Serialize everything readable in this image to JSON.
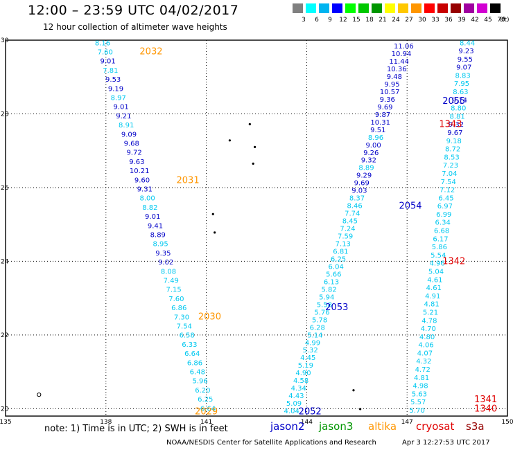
{
  "header": {
    "title": "12:00 – 23:59 UTC 04/02/2017",
    "subtitle": "12 hour collection of altimeter wave heights"
  },
  "color_scale": {
    "unit_label": "(ft)",
    "bins": [
      {
        "label": "3",
        "color": "#808080"
      },
      {
        "label": "6",
        "color": "#00ffff"
      },
      {
        "label": "9",
        "color": "#00b4f0"
      },
      {
        "label": "12",
        "color": "#0000ff"
      },
      {
        "label": "15",
        "color": "#00ff00"
      },
      {
        "label": "18",
        "color": "#00c800"
      },
      {
        "label": "21",
        "color": "#009600"
      },
      {
        "label": "24",
        "color": "#ffff00"
      },
      {
        "label": "27",
        "color": "#ffc800"
      },
      {
        "label": "30",
        "color": "#ff9600"
      },
      {
        "label": "33",
        "color": "#ff0000"
      },
      {
        "label": "36",
        "color": "#c80000"
      },
      {
        "label": "39",
        "color": "#960000"
      },
      {
        "label": "42",
        "color": "#a000a0"
      },
      {
        "label": "45",
        "color": "#d200d2"
      },
      {
        "label": "70",
        "color": "#000000"
      }
    ]
  },
  "axes": {
    "x": {
      "min": 135,
      "max": 150,
      "ticks": [
        "135",
        "138",
        "141",
        "144",
        "147",
        "150"
      ]
    },
    "y": {
      "min": 19.8,
      "max": 30,
      "ticks": [
        "20",
        "22",
        "24",
        "26",
        "28",
        "30"
      ]
    },
    "grid": "dotted"
  },
  "colors": {
    "cyan_value": "#00c8f0",
    "blue_value": "#0000c8",
    "jason2": "#0000c8",
    "jason3": "#009600",
    "altika": "#ff9600",
    "cryosat": "#e00000",
    "s3a": "#960000"
  },
  "passes": [
    {
      "id": "pass-2032",
      "label": "2032",
      "color": "#ff9600",
      "lon": 139.35,
      "lat": 29.69
    },
    {
      "id": "pass-2031",
      "label": "2031",
      "color": "#ff9600",
      "lon": 140.45,
      "lat": 26.2
    },
    {
      "id": "pass-2030",
      "label": "2030",
      "color": "#ff9600",
      "lon": 141.1,
      "lat": 22.5
    },
    {
      "id": "pass-2029",
      "label": "2029",
      "color": "#ff9600",
      "lon": 141.0,
      "lat": 19.92
    },
    {
      "id": "pass-2052",
      "label": "2052",
      "color": "#0000c8",
      "lon": 144.1,
      "lat": 19.92
    },
    {
      "id": "pass-2053",
      "label": "2053",
      "color": "#0000c8",
      "lon": 144.9,
      "lat": 22.75
    },
    {
      "id": "pass-2054",
      "label": "2054",
      "color": "#0000c8",
      "lon": 147.1,
      "lat": 25.5
    },
    {
      "id": "pass-2055",
      "label": "2055",
      "color": "#0000c8",
      "lon": 148.4,
      "lat": 28.35
    },
    {
      "id": "pass-1343",
      "label": "1343",
      "color": "#e00000",
      "lon": 148.3,
      "lat": 27.72
    },
    {
      "id": "pass-1342",
      "label": "1342",
      "color": "#e00000",
      "lon": 148.4,
      "lat": 24.0
    },
    {
      "id": "pass-1341",
      "label": "1341",
      "color": "#e00000",
      "lon": 149.35,
      "lat": 20.25
    },
    {
      "id": "pass-1340",
      "label": "1340",
      "color": "#e00000",
      "lon": 149.35,
      "lat": 20.0
    }
  ],
  "tracks": [
    {
      "id": "altika-west",
      "lon0": 137.9,
      "lat0": 29.92,
      "lon1": 141.05,
      "lat1": 20.0,
      "values": [
        "8.16",
        "7.60",
        "9.01",
        "7.81",
        "9.53",
        "9.19",
        "8.97",
        "9.01",
        "9.21",
        "8.91",
        "9.09",
        "9.68",
        "9.72",
        "9.63",
        "10.21",
        "9.60",
        "9.31",
        "8.00",
        "8.82",
        "9.01",
        "9.41",
        "8.89",
        "8.95",
        "9.35",
        "9.02",
        "8.08",
        "7.49",
        "7.15",
        "7.60",
        "6.86",
        "7.30",
        "7.54",
        "6.58",
        "6.33",
        "6.64",
        "6.86",
        "6.48",
        "5.96",
        "6.20",
        "6.25",
        "6.64"
      ],
      "value_colors": [
        "c",
        "c",
        "b",
        "c",
        "b",
        "b",
        "c",
        "b",
        "b",
        "c",
        "b",
        "b",
        "b",
        "b",
        "b",
        "b",
        "b",
        "c",
        "c",
        "b",
        "b",
        "b",
        "c",
        "b",
        "b",
        "c",
        "c",
        "c",
        "c",
        "c",
        "c",
        "c",
        "c",
        "c",
        "c",
        "c",
        "c",
        "c",
        "c",
        "c",
        "c"
      ]
    },
    {
      "id": "jason-mid",
      "lon0": 143.55,
      "lat0": 19.93,
      "lon1": 146.9,
      "lat1": 29.83,
      "values": [
        "4.04",
        "5.09",
        "4.43",
        "4.34",
        "4.58",
        "4.90",
        "5.19",
        "4.45",
        "5.32",
        "4.99",
        "5.14",
        "6.28",
        "5.78",
        "5.76",
        "5.58",
        "5.94",
        "5.82",
        "6.13",
        "5.66",
        "6.04",
        "6.25",
        "6.81",
        "7.13",
        "7.59",
        "7.24",
        "8.45",
        "7.74",
        "8.46",
        "8.37",
        "9.03",
        "9.69",
        "9.29",
        "8.89",
        "9.32",
        "9.26",
        "9.00",
        "8.96",
        "9.51",
        "10.31",
        "9.87",
        "9.69",
        "9.36",
        "10.57",
        "9.95",
        "9.48",
        "10.36",
        "11.44",
        "10.94",
        "11.06"
      ],
      "value_colors": [
        "c",
        "c",
        "c",
        "c",
        "c",
        "c",
        "c",
        "c",
        "c",
        "c",
        "c",
        "c",
        "c",
        "c",
        "c",
        "c",
        "c",
        "c",
        "c",
        "c",
        "c",
        "c",
        "c",
        "c",
        "c",
        "c",
        "c",
        "c",
        "c",
        "b",
        "b",
        "b",
        "c",
        "b",
        "b",
        "b",
        "c",
        "b",
        "b",
        "b",
        "b",
        "b",
        "b",
        "b",
        "b",
        "b",
        "b",
        "b",
        "b"
      ]
    },
    {
      "id": "jason-east",
      "lon0": 148.8,
      "lat0": 29.92,
      "lon1": 147.3,
      "lat1": 19.95,
      "values": [
        "8.44",
        "9.23",
        "9.55",
        "9.07",
        "8.83",
        "7.95",
        "8.63",
        "9.14",
        "8.80",
        "8.81",
        "9.32",
        "9.67",
        "9.18",
        "8.72",
        "8.53",
        "7.23",
        "7.04",
        "7.54",
        "7.12",
        "6.45",
        "6.97",
        "6.99",
        "6.34",
        "6.68",
        "6.17",
        "5.86",
        "5.54",
        "4.96",
        "5.04",
        "4.61",
        "4.61",
        "4.91",
        "4.81",
        "5.21",
        "4.78",
        "4.70",
        "4.80",
        "4.06",
        "4.07",
        "4.32",
        "4.72",
        "4.81",
        "4.98",
        "5.63",
        "5.57",
        "5.70"
      ],
      "value_colors": [
        "c",
        "b",
        "b",
        "b",
        "c",
        "c",
        "c",
        "b",
        "c",
        "c",
        "b",
        "b",
        "c",
        "c",
        "c",
        "c",
        "c",
        "c",
        "c",
        "c",
        "c",
        "c",
        "c",
        "c",
        "c",
        "c",
        "c",
        "c",
        "c",
        "c",
        "c",
        "c",
        "c",
        "c",
        "c",
        "c",
        "c",
        "c",
        "c",
        "c",
        "c",
        "c",
        "c",
        "c",
        "c",
        "c"
      ]
    }
  ],
  "islands": [
    {
      "id": "island-1",
      "lon": 136.0,
      "lat": 20.38,
      "shape": "ring"
    },
    {
      "id": "island-2",
      "lon": 141.7,
      "lat": 27.28,
      "shape": "dot"
    },
    {
      "id": "island-3",
      "lon": 142.3,
      "lat": 27.72,
      "shape": "dot"
    },
    {
      "id": "island-4",
      "lon": 142.45,
      "lat": 27.1,
      "shape": "dot"
    },
    {
      "id": "island-5",
      "lon": 142.4,
      "lat": 26.65,
      "shape": "dot"
    },
    {
      "id": "island-6",
      "lon": 141.2,
      "lat": 25.28,
      "shape": "dot"
    },
    {
      "id": "island-7",
      "lon": 141.25,
      "lat": 24.78,
      "shape": "dot"
    },
    {
      "id": "island-8",
      "lon": 145.4,
      "lat": 20.5,
      "shape": "dot"
    },
    {
      "id": "island-9",
      "lon": 145.6,
      "lat": 19.99,
      "shape": "dot"
    }
  ],
  "note": "note: 1) Time is in UTC; 2) SWH is in feet",
  "satellites": [
    {
      "id": "jason2",
      "label": "jason2",
      "color": "#0000c8"
    },
    {
      "id": "jason3",
      "label": "jason3",
      "color": "#009600"
    },
    {
      "id": "altika",
      "label": "altika",
      "color": "#ff9600"
    },
    {
      "id": "cryosat",
      "label": "cryosat",
      "color": "#e00000"
    },
    {
      "id": "s3a",
      "label": "s3a",
      "color": "#960000"
    }
  ],
  "footer": {
    "credit": "NOAA/NESDIS Center for Satellite Applications and Research",
    "timestamp": "Apr  3 12:27:53 UTC 2017"
  }
}
